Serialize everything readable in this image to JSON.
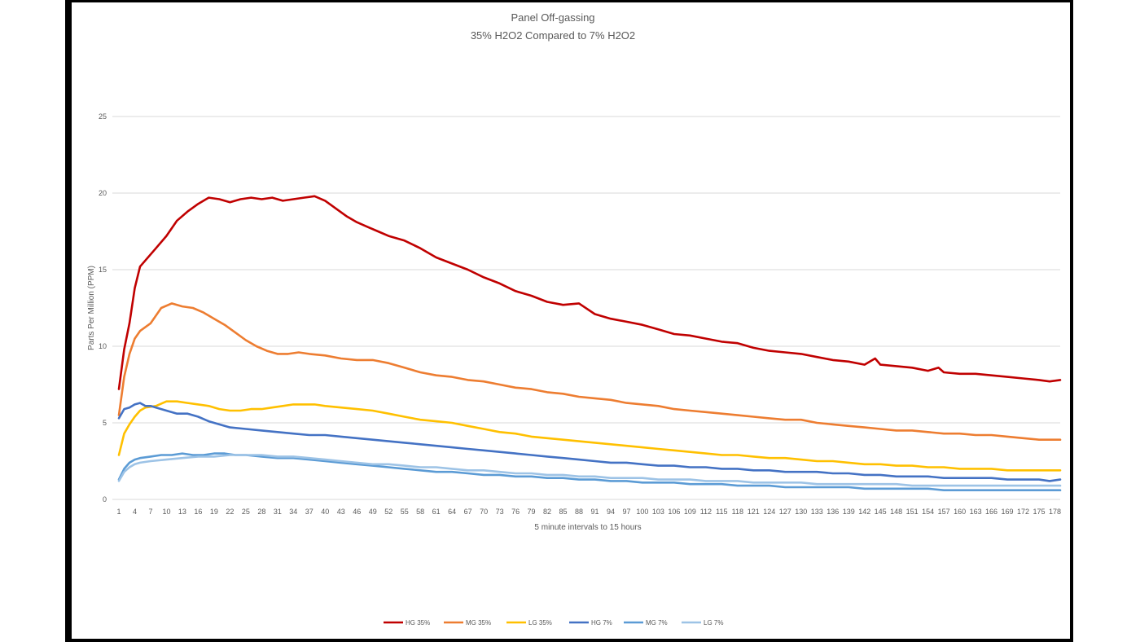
{
  "chart_data": {
    "type": "line",
    "title": "Panel Off-gassing",
    "subtitle": "35% H2O2 Compared to 7% H2O2",
    "xlabel": "5 minute intervals to 15 hours",
    "ylabel": "Parts Per Million (PPM)",
    "ylim": [
      0,
      25
    ],
    "yticks": [
      0,
      5,
      10,
      15,
      20,
      25
    ],
    "xlim": [
      1,
      179
    ],
    "xticks": [
      1,
      4,
      7,
      10,
      13,
      16,
      19,
      22,
      25,
      28,
      31,
      34,
      37,
      40,
      43,
      46,
      49,
      52,
      55,
      58,
      61,
      64,
      67,
      70,
      73,
      76,
      79,
      82,
      85,
      88,
      91,
      94,
      97,
      100,
      103,
      106,
      109,
      112,
      115,
      118,
      121,
      124,
      127,
      130,
      133,
      136,
      139,
      142,
      145,
      148,
      151,
      154,
      157,
      160,
      163,
      166,
      169,
      172,
      175,
      178
    ],
    "grid": "horizontal",
    "legend_position": "bottom",
    "series": [
      {
        "name": "HG 35%",
        "color": "#c00000",
        "x": [
          1,
          2,
          3,
          4,
          5,
          6,
          8,
          10,
          12,
          14,
          16,
          18,
          20,
          22,
          24,
          26,
          28,
          30,
          32,
          34,
          36,
          38,
          40,
          42,
          44,
          46,
          48,
          50,
          52,
          55,
          58,
          61,
          64,
          67,
          70,
          73,
          76,
          79,
          82,
          85,
          88,
          91,
          94,
          97,
          100,
          103,
          106,
          109,
          112,
          115,
          118,
          121,
          124,
          127,
          130,
          133,
          136,
          139,
          142,
          144,
          145,
          148,
          151,
          154,
          156,
          157,
          160,
          163,
          166,
          169,
          172,
          175,
          177,
          179
        ],
        "values": [
          7.2,
          9.8,
          11.5,
          13.8,
          15.2,
          15.6,
          16.4,
          17.2,
          18.2,
          18.8,
          19.3,
          19.7,
          19.6,
          19.4,
          19.6,
          19.7,
          19.6,
          19.7,
          19.5,
          19.6,
          19.7,
          19.8,
          19.5,
          19.0,
          18.5,
          18.1,
          17.8,
          17.5,
          17.2,
          16.9,
          16.4,
          15.8,
          15.4,
          15.0,
          14.5,
          14.1,
          13.6,
          13.3,
          12.9,
          12.7,
          12.8,
          12.1,
          11.8,
          11.6,
          11.4,
          11.1,
          10.8,
          10.7,
          10.5,
          10.3,
          10.2,
          9.9,
          9.7,
          9.6,
          9.5,
          9.3,
          9.1,
          9.0,
          8.8,
          9.2,
          8.8,
          8.7,
          8.6,
          8.4,
          8.6,
          8.3,
          8.2,
          8.2,
          8.1,
          8.0,
          7.9,
          7.8,
          7.7,
          7.8
        ]
      },
      {
        "name": "MG 35%",
        "color": "#ed7d31",
        "x": [
          1,
          2,
          3,
          4,
          5,
          7,
          9,
          11,
          13,
          15,
          17,
          19,
          21,
          23,
          25,
          27,
          29,
          31,
          33,
          35,
          37,
          40,
          43,
          46,
          49,
          52,
          55,
          58,
          61,
          64,
          67,
          70,
          73,
          76,
          79,
          82,
          85,
          88,
          91,
          94,
          97,
          100,
          103,
          106,
          109,
          112,
          115,
          118,
          121,
          124,
          127,
          130,
          133,
          136,
          139,
          142,
          145,
          148,
          151,
          154,
          157,
          160,
          163,
          166,
          169,
          172,
          175,
          179
        ],
        "values": [
          5.5,
          8.0,
          9.5,
          10.5,
          11.0,
          11.5,
          12.5,
          12.8,
          12.6,
          12.5,
          12.2,
          11.8,
          11.4,
          10.9,
          10.4,
          10.0,
          9.7,
          9.5,
          9.5,
          9.6,
          9.5,
          9.4,
          9.2,
          9.1,
          9.1,
          8.9,
          8.6,
          8.3,
          8.1,
          8.0,
          7.8,
          7.7,
          7.5,
          7.3,
          7.2,
          7.0,
          6.9,
          6.7,
          6.6,
          6.5,
          6.3,
          6.2,
          6.1,
          5.9,
          5.8,
          5.7,
          5.6,
          5.5,
          5.4,
          5.3,
          5.2,
          5.2,
          5.0,
          4.9,
          4.8,
          4.7,
          4.6,
          4.5,
          4.5,
          4.4,
          4.3,
          4.3,
          4.2,
          4.2,
          4.1,
          4.0,
          3.9,
          3.9
        ]
      },
      {
        "name": "LG 35%",
        "color": "#ffc000",
        "x": [
          1,
          2,
          3,
          4,
          5,
          6,
          8,
          10,
          12,
          14,
          16,
          18,
          20,
          22,
          24,
          26,
          28,
          30,
          32,
          34,
          36,
          38,
          40,
          43,
          46,
          49,
          52,
          55,
          58,
          61,
          64,
          67,
          70,
          73,
          76,
          79,
          82,
          85,
          88,
          91,
          94,
          97,
          100,
          103,
          106,
          109,
          112,
          115,
          118,
          121,
          124,
          127,
          130,
          133,
          136,
          139,
          142,
          145,
          148,
          151,
          154,
          157,
          160,
          163,
          166,
          169,
          172,
          175,
          179
        ],
        "values": [
          2.9,
          4.3,
          4.9,
          5.4,
          5.8,
          6.0,
          6.1,
          6.4,
          6.4,
          6.3,
          6.2,
          6.1,
          5.9,
          5.8,
          5.8,
          5.9,
          5.9,
          6.0,
          6.1,
          6.2,
          6.2,
          6.2,
          6.1,
          6.0,
          5.9,
          5.8,
          5.6,
          5.4,
          5.2,
          5.1,
          5.0,
          4.8,
          4.6,
          4.4,
          4.3,
          4.1,
          4.0,
          3.9,
          3.8,
          3.7,
          3.6,
          3.5,
          3.4,
          3.3,
          3.2,
          3.1,
          3.0,
          2.9,
          2.9,
          2.8,
          2.7,
          2.7,
          2.6,
          2.5,
          2.5,
          2.4,
          2.3,
          2.3,
          2.2,
          2.2,
          2.1,
          2.1,
          2.0,
          2.0,
          2.0,
          1.9,
          1.9,
          1.9,
          1.9
        ]
      },
      {
        "name": "HG 7%",
        "color": "#4472c4",
        "x": [
          1,
          2,
          3,
          4,
          5,
          6,
          7,
          8,
          10,
          12,
          14,
          16,
          18,
          20,
          22,
          25,
          28,
          31,
          34,
          37,
          40,
          43,
          46,
          49,
          52,
          55,
          58,
          61,
          64,
          67,
          70,
          73,
          76,
          79,
          82,
          85,
          88,
          91,
          94,
          97,
          100,
          103,
          106,
          109,
          112,
          115,
          118,
          121,
          124,
          127,
          130,
          133,
          136,
          139,
          142,
          145,
          148,
          151,
          154,
          157,
          160,
          163,
          166,
          169,
          172,
          175,
          177,
          179
        ],
        "values": [
          5.3,
          5.9,
          6.0,
          6.2,
          6.3,
          6.1,
          6.1,
          6.0,
          5.8,
          5.6,
          5.6,
          5.4,
          5.1,
          4.9,
          4.7,
          4.6,
          4.5,
          4.4,
          4.3,
          4.2,
          4.2,
          4.1,
          4.0,
          3.9,
          3.8,
          3.7,
          3.6,
          3.5,
          3.4,
          3.3,
          3.2,
          3.1,
          3.0,
          2.9,
          2.8,
          2.7,
          2.6,
          2.5,
          2.4,
          2.4,
          2.3,
          2.2,
          2.2,
          2.1,
          2.1,
          2.0,
          2.0,
          1.9,
          1.9,
          1.8,
          1.8,
          1.8,
          1.7,
          1.7,
          1.6,
          1.6,
          1.5,
          1.5,
          1.5,
          1.4,
          1.4,
          1.4,
          1.4,
          1.3,
          1.3,
          1.3,
          1.2,
          1.3
        ]
      },
      {
        "name": "MG 7%",
        "color": "#5b9bd5",
        "x": [
          1,
          2,
          3,
          4,
          5,
          7,
          9,
          11,
          13,
          15,
          17,
          19,
          21,
          23,
          25,
          28,
          31,
          34,
          37,
          40,
          43,
          46,
          49,
          52,
          55,
          58,
          61,
          64,
          67,
          70,
          73,
          76,
          79,
          82,
          85,
          88,
          91,
          94,
          97,
          100,
          103,
          106,
          109,
          112,
          115,
          118,
          121,
          124,
          127,
          130,
          133,
          136,
          139,
          142,
          145,
          148,
          151,
          154,
          157,
          160,
          163,
          166,
          169,
          172,
          175,
          179
        ],
        "values": [
          1.3,
          2.0,
          2.4,
          2.6,
          2.7,
          2.8,
          2.9,
          2.9,
          3.0,
          2.9,
          2.9,
          3.0,
          3.0,
          2.9,
          2.9,
          2.8,
          2.7,
          2.7,
          2.6,
          2.5,
          2.4,
          2.3,
          2.2,
          2.1,
          2.0,
          1.9,
          1.8,
          1.8,
          1.7,
          1.6,
          1.6,
          1.5,
          1.5,
          1.4,
          1.4,
          1.3,
          1.3,
          1.2,
          1.2,
          1.1,
          1.1,
          1.1,
          1.0,
          1.0,
          1.0,
          0.9,
          0.9,
          0.9,
          0.8,
          0.8,
          0.8,
          0.8,
          0.8,
          0.7,
          0.7,
          0.7,
          0.7,
          0.7,
          0.6,
          0.6,
          0.6,
          0.6,
          0.6,
          0.6,
          0.6,
          0.6
        ]
      },
      {
        "name": "LG 7%",
        "color": "#9dc3e6",
        "x": [
          1,
          2,
          3,
          4,
          5,
          7,
          10,
          13,
          16,
          19,
          22,
          25,
          28,
          31,
          34,
          37,
          40,
          43,
          46,
          49,
          52,
          55,
          58,
          61,
          64,
          67,
          70,
          73,
          76,
          79,
          82,
          85,
          88,
          91,
          94,
          97,
          100,
          103,
          106,
          109,
          112,
          115,
          118,
          121,
          124,
          127,
          130,
          133,
          136,
          139,
          142,
          145,
          148,
          151,
          154,
          157,
          160,
          163,
          166,
          169,
          172,
          175,
          179
        ],
        "values": [
          1.2,
          1.8,
          2.1,
          2.3,
          2.4,
          2.5,
          2.6,
          2.7,
          2.8,
          2.8,
          2.9,
          2.9,
          2.9,
          2.8,
          2.8,
          2.7,
          2.6,
          2.5,
          2.4,
          2.3,
          2.3,
          2.2,
          2.1,
          2.1,
          2.0,
          1.9,
          1.9,
          1.8,
          1.7,
          1.7,
          1.6,
          1.6,
          1.5,
          1.5,
          1.4,
          1.4,
          1.4,
          1.3,
          1.3,
          1.3,
          1.2,
          1.2,
          1.2,
          1.1,
          1.1,
          1.1,
          1.1,
          1.0,
          1.0,
          1.0,
          1.0,
          1.0,
          1.0,
          0.9,
          0.9,
          0.9,
          0.9,
          0.9,
          0.9,
          0.9,
          0.9,
          0.9,
          0.9
        ]
      }
    ]
  }
}
